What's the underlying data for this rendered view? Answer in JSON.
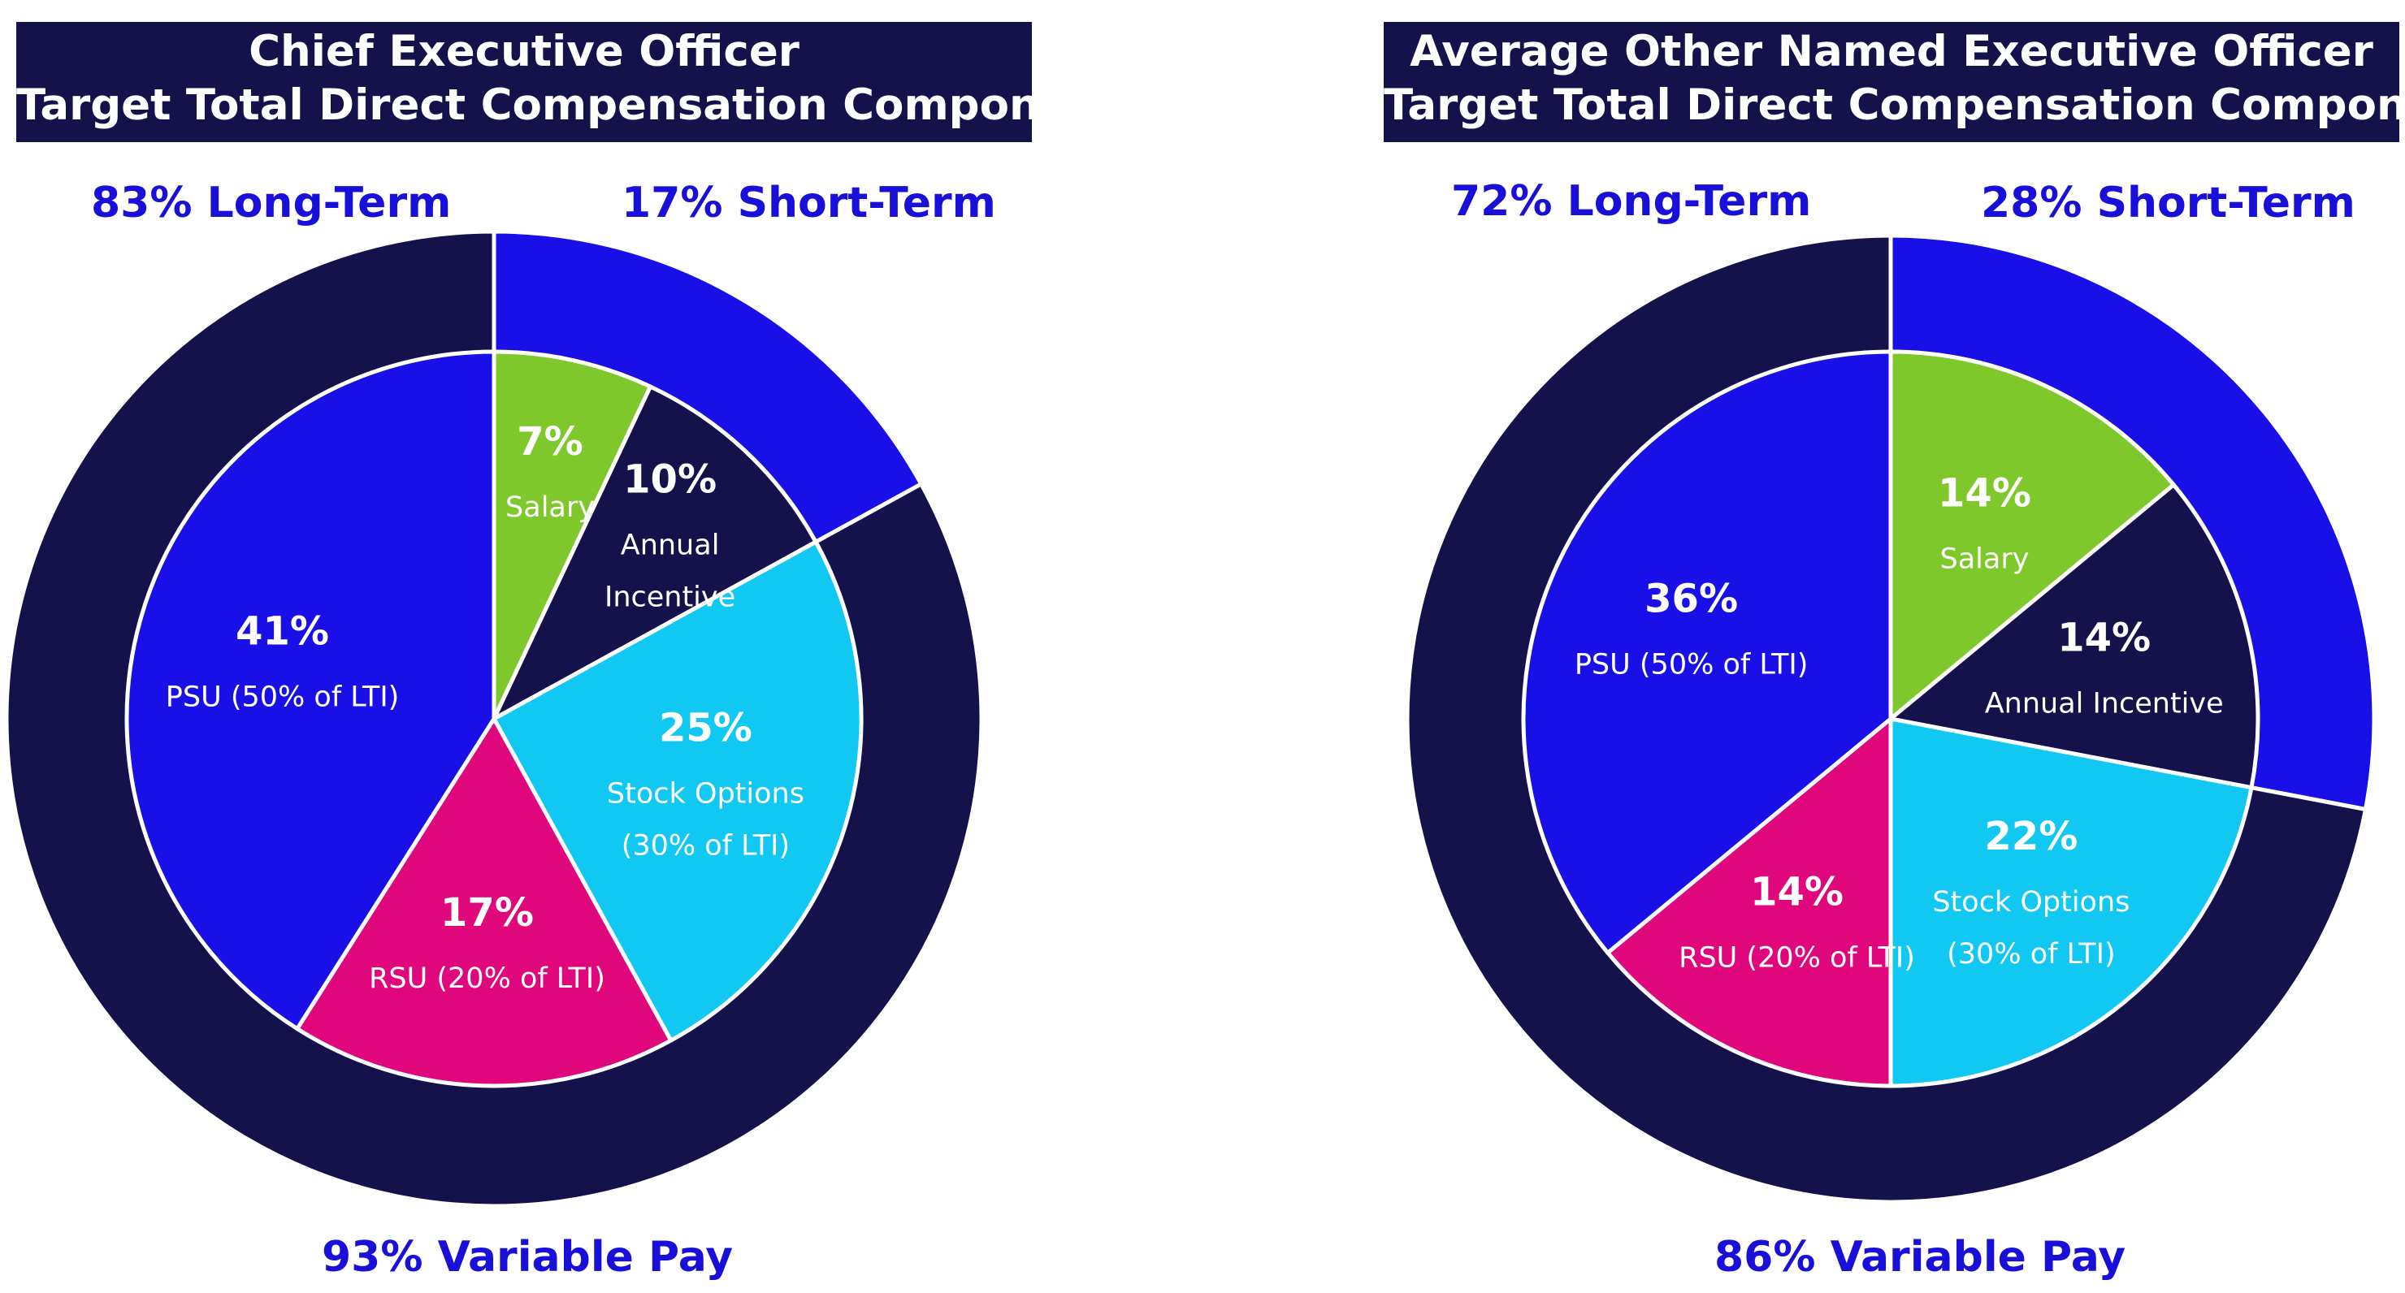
{
  "colors": {
    "title_bg": "#15114a",
    "summary_text": "#1810d8",
    "outer_ring_long_term": "#15114a",
    "outer_ring_short_term": "#1810e6",
    "psu": "#1810e6",
    "rsu": "#e0077c",
    "stock_options": "#10c8f2",
    "annual_incentive": "#15114a",
    "salary": "#7ec82c"
  },
  "chart_data": [
    {
      "type": "pie",
      "title_line1": "Chief Executive Officer",
      "title_line2": "Target Total Direct Compensation Components",
      "summary": {
        "long_term": "83% Long-Term",
        "short_term": "17% Short-Term",
        "variable_pay": "93% Variable Pay"
      },
      "outer_ring": [
        {
          "name": "Short-Term",
          "value": 17
        },
        {
          "name": "Long-Term",
          "value": 83
        }
      ],
      "slices": [
        {
          "key": "salary",
          "value": 7,
          "pct_label": "7%",
          "name_lines": [
            "Salary"
          ]
        },
        {
          "key": "annual_incentive",
          "value": 10,
          "pct_label": "10%",
          "name_lines": [
            "Annual",
            "Incentive"
          ]
        },
        {
          "key": "stock_options",
          "value": 25,
          "pct_label": "25%",
          "name_lines": [
            "Stock Options",
            "(30% of LTI)"
          ]
        },
        {
          "key": "rsu",
          "value": 17,
          "pct_label": "17%",
          "name_lines": [
            "RSU (20% of LTI)"
          ]
        },
        {
          "key": "psu",
          "value": 41,
          "pct_label": "41%",
          "name_lines": [
            "PSU (50% of LTI)"
          ]
        }
      ]
    },
    {
      "type": "pie",
      "title_line1": "Average Other Named Executive Officer",
      "title_line2": "Target Total Direct Compensation Components",
      "summary": {
        "long_term": "72% Long-Term",
        "short_term": "28% Short-Term",
        "variable_pay": "86% Variable Pay"
      },
      "outer_ring": [
        {
          "name": "Short-Term",
          "value": 28
        },
        {
          "name": "Long-Term",
          "value": 72
        }
      ],
      "slices": [
        {
          "key": "salary",
          "value": 14,
          "pct_label": "14%",
          "name_lines": [
            "Salary"
          ]
        },
        {
          "key": "annual_incentive",
          "value": 14,
          "pct_label": "14%",
          "name_lines": [
            "Annual Incentive"
          ]
        },
        {
          "key": "stock_options",
          "value": 22,
          "pct_label": "22%",
          "name_lines": [
            "Stock Options",
            "(30% of LTI)"
          ]
        },
        {
          "key": "rsu",
          "value": 14,
          "pct_label": "14%",
          "name_lines": [
            "RSU (20% of LTI)"
          ]
        },
        {
          "key": "psu",
          "value": 36,
          "pct_label": "36%",
          "name_lines": [
            "PSU (50% of LTI)"
          ]
        }
      ]
    }
  ]
}
